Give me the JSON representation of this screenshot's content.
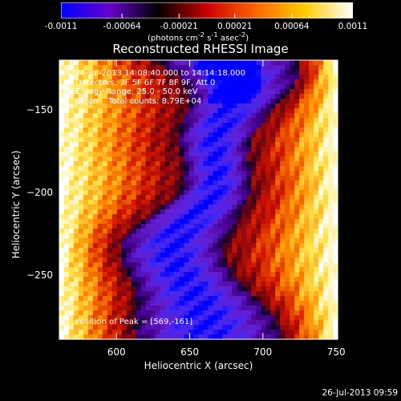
{
  "chart_data": {
    "type": "heatmap",
    "title": "Reconstructed RHESSI Image",
    "xlabel": "Heliocentric X (arcsec)",
    "ylabel": "Heliocentric Y (arcsec)",
    "xlim": [
      561,
      751
    ],
    "ylim": [
      -289,
      -120
    ],
    "x_ticks": [
      "600",
      "650",
      "700",
      "750"
    ],
    "x_tick_values": [
      600,
      650,
      700,
      750
    ],
    "y_ticks": [
      "-150",
      "-200",
      "-250"
    ],
    "y_tick_values": [
      -150,
      -200,
      -250
    ],
    "colorbar": {
      "ticks": [
        "-0.0011",
        "-0.00064",
        "-0.00021",
        "0.00021",
        "0.00064",
        "0.0011"
      ],
      "tick_values": [
        -0.0011,
        -0.00064,
        -0.00021,
        0.00021,
        0.00064,
        0.0011
      ],
      "range": [
        -0.0011,
        0.0011
      ],
      "units": "(photons cm<sup>-2</sup> s<sup>-1</sup> asec<sup>-2</sup>)",
      "colormap": [
        "#0000ff",
        "#6600cc",
        "#000000",
        "#cc0000",
        "#ff6600",
        "#ffcc00",
        "#ffffff"
      ]
    },
    "info_lines": [
      "26-Jul-2013 14:08:40.000 to 14:14:18.000",
      "Detectors: 3F 5F 6F 7F 8F 9F, Att 0",
      "Energy Range: 25.0 - 50.0 keV",
      "Clean    Total counts: 8.79E+04"
    ],
    "peak_label": "Position of Peak = [569,-161]",
    "peak_position": [
      569,
      -161
    ]
  },
  "timestamp": "26-Jul-2013 09:59"
}
